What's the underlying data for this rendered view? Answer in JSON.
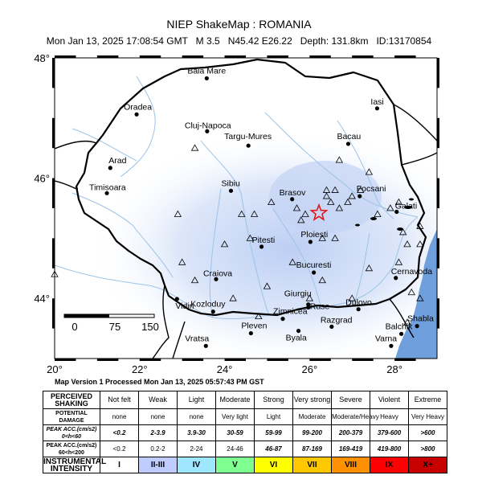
{
  "header": {
    "title": "NIEP ShakeMap : ROMANIA",
    "subtitle": "Mon Jan 13, 2025 17:08:54 GMT   M 3.5   N45.42 E26.22   Depth: 131.8km   ID:13170854"
  },
  "map": {
    "lon_range": [
      20,
      29
    ],
    "lat_range": [
      43,
      48
    ],
    "x_ticks": [
      "20°",
      "22°",
      "24°",
      "26°",
      "28°"
    ],
    "y_ticks": [
      "48°",
      "46°",
      "44°"
    ],
    "epicenter": {
      "lon": 26.22,
      "lat": 45.42
    },
    "colors": {
      "sea": "#6f9fdc",
      "river": "#9cc3e6",
      "shaking": "#c3d3f4",
      "border": "#000000",
      "epicenter": "#e01818"
    },
    "cities": [
      {
        "name": "Baia Mare",
        "lon": 23.58,
        "lat": 47.66
      },
      {
        "name": "Oradea",
        "lon": 21.93,
        "lat": 47.06
      },
      {
        "name": "Cluj-Napoca",
        "lon": 23.59,
        "lat": 46.78
      },
      {
        "name": "Targu-Mures",
        "lon": 24.56,
        "lat": 46.54
      },
      {
        "name": "Iasi",
        "lon": 27.59,
        "lat": 47.16
      },
      {
        "name": "Bacau",
        "lon": 26.91,
        "lat": 46.57
      },
      {
        "name": "Arad",
        "lon": 21.31,
        "lat": 46.17
      },
      {
        "name": "Timisoara",
        "lon": 21.23,
        "lat": 45.75
      },
      {
        "name": "Sibiu",
        "lon": 24.15,
        "lat": 45.79
      },
      {
        "name": "Brasov",
        "lon": 25.59,
        "lat": 45.65
      },
      {
        "name": "Focsani",
        "lon": 27.18,
        "lat": 45.7
      },
      {
        "name": "Galati",
        "lon": 28.05,
        "lat": 45.44
      },
      {
        "name": "Ploiesti",
        "lon": 26.02,
        "lat": 44.94
      },
      {
        "name": "Pitesti",
        "lon": 24.87,
        "lat": 44.86
      },
      {
        "name": "Bucuresti",
        "lon": 26.1,
        "lat": 44.43
      },
      {
        "name": "Craiova",
        "lon": 23.8,
        "lat": 44.32
      },
      {
        "name": "Cernavoda",
        "lon": 28.03,
        "lat": 44.34
      },
      {
        "name": "Giurgiu",
        "lon": 25.97,
        "lat": 43.9
      },
      {
        "name": "Zimnicea",
        "lon": 25.37,
        "lat": 43.66
      },
      {
        "name": "Ruse",
        "lon": 25.97,
        "lat": 43.85
      },
      {
        "name": "Dulovo",
        "lon": 27.15,
        "lat": 43.82
      },
      {
        "name": "Kozloduy",
        "lon": 23.73,
        "lat": 43.78
      },
      {
        "name": "Vidin",
        "lon": 22.88,
        "lat": 43.99
      },
      {
        "name": "Pleven",
        "lon": 24.62,
        "lat": 43.42
      },
      {
        "name": "Byala",
        "lon": 25.74,
        "lat": 43.46
      },
      {
        "name": "Razgrad",
        "lon": 26.52,
        "lat": 43.53
      },
      {
        "name": "Balchik",
        "lon": 28.16,
        "lat": 43.41
      },
      {
        "name": "Shabla",
        "lon": 28.53,
        "lat": 43.54
      },
      {
        "name": "Varna",
        "lon": 27.92,
        "lat": 43.21
      },
      {
        "name": "Vratsa",
        "lon": 23.56,
        "lat": 43.21
      }
    ],
    "stations": [
      {
        "lon": 23.3,
        "lat": 46.5
      },
      {
        "lon": 22.9,
        "lat": 45.4
      },
      {
        "lon": 24.4,
        "lat": 45.4
      },
      {
        "lon": 24.7,
        "lat": 45.4
      },
      {
        "lon": 25.1,
        "lat": 45.6
      },
      {
        "lon": 25.7,
        "lat": 45.5
      },
      {
        "lon": 25.9,
        "lat": 45.4
      },
      {
        "lon": 26.4,
        "lat": 45.7
      },
      {
        "lon": 26.5,
        "lat": 45.6
      },
      {
        "lon": 26.7,
        "lat": 45.5
      },
      {
        "lon": 26.9,
        "lat": 45.6
      },
      {
        "lon": 27.0,
        "lat": 45.7
      },
      {
        "lon": 27.2,
        "lat": 45.8
      },
      {
        "lon": 27.4,
        "lat": 46.1
      },
      {
        "lon": 26.7,
        "lat": 46.3
      },
      {
        "lon": 26.4,
        "lat": 45.8
      },
      {
        "lon": 26.6,
        "lat": 45.8
      },
      {
        "lon": 25.8,
        "lat": 45.3
      },
      {
        "lon": 26.3,
        "lat": 45.0
      },
      {
        "lon": 26.6,
        "lat": 45.0
      },
      {
        "lon": 27.6,
        "lat": 45.4
      },
      {
        "lon": 27.9,
        "lat": 45.5
      },
      {
        "lon": 28.1,
        "lat": 45.6
      },
      {
        "lon": 28.6,
        "lat": 45.2
      },
      {
        "lon": 28.2,
        "lat": 45.1
      },
      {
        "lon": 28.3,
        "lat": 44.9
      },
      {
        "lon": 28.6,
        "lat": 44.9
      },
      {
        "lon": 24.0,
        "lat": 44.9
      },
      {
        "lon": 24.6,
        "lat": 45.0
      },
      {
        "lon": 25.6,
        "lat": 44.6
      },
      {
        "lon": 26.3,
        "lat": 44.3
      },
      {
        "lon": 27.4,
        "lat": 44.5
      },
      {
        "lon": 28.1,
        "lat": 44.6
      },
      {
        "lon": 28.4,
        "lat": 44.1
      },
      {
        "lon": 28.6,
        "lat": 44.0
      },
      {
        "lon": 23.0,
        "lat": 44.6
      },
      {
        "lon": 23.3,
        "lat": 44.3
      },
      {
        "lon": 24.2,
        "lat": 44.0
      },
      {
        "lon": 24.8,
        "lat": 43.7
      },
      {
        "lon": 25.0,
        "lat": 44.2
      },
      {
        "lon": 26.0,
        "lat": 44.0
      },
      {
        "lon": 27.0,
        "lat": 44.0
      },
      {
        "lon": 28.3,
        "lat": 43.6
      },
      {
        "lon": 20.0,
        "lat": 44.4
      }
    ],
    "scale_bar": {
      "labels": [
        "0",
        "75",
        "150"
      ]
    }
  },
  "caption": "Map Version 1 Processed Mon Jan 13, 2025 05:57:43 PM GST",
  "legend": {
    "rows": [
      {
        "label": "PERCEIVED SHAKING",
        "cells": [
          "Not felt",
          "Weak",
          "Light",
          "Moderate",
          "Strong",
          "Very strong",
          "Severe",
          "Violent",
          "Extreme"
        ]
      },
      {
        "label": "POTENTIAL DAMAGE",
        "cells": [
          "none",
          "none",
          "none",
          "Very light",
          "Light",
          "Moderate",
          "Moderate/Heavy",
          "Heavy",
          "Very Heavy"
        ]
      },
      {
        "label": "PEAK ACC.(cm/s2) 0<h<60",
        "cells": [
          "<0.2",
          "2-3.9",
          "3.9-30",
          "30-59",
          "59-99",
          "99-200",
          "200-379",
          "379-600",
          ">600"
        ]
      },
      {
        "label": "PEAK ACC.(cm/s2) 60<h<200",
        "cells": [
          "<0.2",
          "0.2-2",
          "2-24",
          "24-46",
          "46-87",
          "87-169",
          "169-419",
          "419-800",
          ">800"
        ]
      },
      {
        "label": "INSTRUMENTAL INTENSITY",
        "cells": [
          "I",
          "II-III",
          "IV",
          "V",
          "VI",
          "VII",
          "VIII",
          "IX",
          "X+"
        ]
      }
    ],
    "intensity_colors": [
      "#ffffff",
      "#bfccff",
      "#9fe6ff",
      "#80ff91",
      "#ffff00",
      "#ffc800",
      "#ff9100",
      "#ff0000",
      "#c80000"
    ]
  }
}
